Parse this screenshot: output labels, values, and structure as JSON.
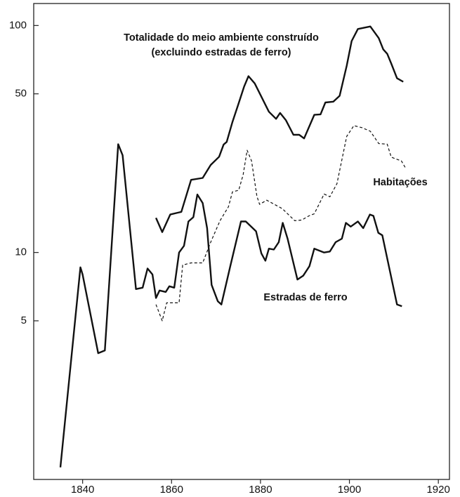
{
  "chart_data": {
    "type": "line",
    "log_scale": true,
    "xlim": [
      1829,
      1922.5
    ],
    "ylim": [
      1,
      125
    ],
    "xticks": [
      1840,
      1860,
      1880,
      1900,
      1920
    ],
    "yticks": [
      5,
      10,
      50,
      100
    ],
    "annotations": [
      "(excluindo estradas de ferro)"
    ],
    "series": [
      {
        "name": "Totalidade do meio ambiente construído",
        "color": "#111111",
        "dashed": false,
        "x": [
          1856.5,
          1857.9,
          1859.7,
          1862.2,
          1864.4,
          1867,
          1868.8,
          1870.7,
          1871.7,
          1872.4,
          1873.7,
          1875,
          1876.3,
          1877.3,
          1878.7,
          1881.9,
          1883.5,
          1884.4,
          1885.7,
          1887.4,
          1888.7,
          1889.8,
          1892.1,
          1893.5,
          1894.6,
          1896.4,
          1897.8,
          1899.4,
          1900.5,
          1901.9,
          1904.7,
          1906.6,
          1907.6,
          1908.5,
          1909.4,
          1910.7,
          1912.1
        ],
        "values": [
          14.2,
          12.3,
          14.7,
          15.1,
          20.9,
          21.3,
          24.3,
          26.4,
          29.9,
          30.7,
          37.6,
          44.9,
          53.7,
          59.8,
          55.6,
          41.7,
          38.8,
          41.2,
          38.3,
          33,
          33,
          31.8,
          40.4,
          40.6,
          45.8,
          46.2,
          49,
          66.5,
          85.4,
          96.5,
          99,
          88,
          78.5,
          75,
          68,
          58.6,
          56.5
        ]
      },
      {
        "name": "Habitações",
        "color": "#111111",
        "dashed": true,
        "x": [
          1856.5,
          1857.9,
          1858.9,
          1861.7,
          1862.5,
          1864.4,
          1867,
          1868.8,
          1870.9,
          1872.8,
          1873.7,
          1875.1,
          1876.1,
          1877,
          1878,
          1879.2,
          1879.8,
          1881.4,
          1884.9,
          1887.7,
          1889.3,
          1890.9,
          1892.1,
          1894.3,
          1895.6,
          1897.2,
          1899.4,
          1901,
          1902.8,
          1904.7,
          1906.6,
          1908.5,
          1909.4,
          1911.7,
          1912.6
        ],
        "values": [
          5.9,
          5.0,
          6.0,
          6.0,
          8.8,
          9.0,
          9.0,
          11.1,
          13.8,
          15.9,
          18.5,
          18.8,
          22.0,
          28.2,
          25.3,
          17.7,
          16.3,
          17.0,
          15.6,
          13.8,
          13.9,
          14.5,
          14.8,
          18.1,
          17.6,
          20.1,
          32.5,
          36.2,
          35.5,
          34.2,
          30.2,
          30.0,
          26.3,
          25.3,
          23.6
        ]
      },
      {
        "name": "Estradas de ferro",
        "color": "#111111",
        "dashed": false,
        "x": [
          1835,
          1839.5,
          1840,
          1843.5,
          1845,
          1848,
          1849,
          1852,
          1853.5,
          1854.6,
          1855.7,
          1856.5,
          1857.3,
          1858.7,
          1859.5,
          1860.6,
          1861.7,
          1862.8,
          1863.8,
          1864.9,
          1865.8,
          1867,
          1868,
          1869,
          1870.4,
          1871.2,
          1873.2,
          1875.6,
          1876.7,
          1879,
          1880.2,
          1881.1,
          1881.9,
          1883,
          1884.1,
          1885,
          1886.1,
          1888.3,
          1889.6,
          1891,
          1892.1,
          1894.3,
          1895.6,
          1896.9,
          1898.3,
          1899.2,
          1900.3,
          1901.9,
          1903.1,
          1904.6,
          1905.4,
          1906.5,
          1907.4,
          1910.7,
          1911.8
        ],
        "values": [
          1.13,
          8.6,
          8.0,
          3.6,
          3.7,
          30,
          26.8,
          6.9,
          7,
          8.5,
          8,
          6.3,
          6.8,
          6.7,
          7.1,
          7,
          10,
          10.7,
          13.7,
          14.3,
          18,
          16.5,
          12.8,
          7.2,
          6.1,
          5.9,
          8.7,
          13.7,
          13.7,
          12.4,
          9.9,
          9.2,
          10.4,
          10.3,
          11.1,
          13.5,
          11.5,
          7.6,
          7.9,
          8.7,
          10.4,
          10,
          10.1,
          11.1,
          11.5,
          13.5,
          13,
          13.7,
          12.8,
          14.7,
          14.5,
          12.2,
          11.9,
          5.9,
          5.8
        ]
      }
    ]
  }
}
